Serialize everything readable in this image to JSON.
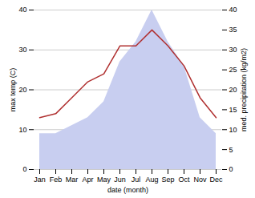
{
  "chart_data": {
    "type": "line",
    "categories": [
      "Jan",
      "Feb",
      "Mar",
      "Apr",
      "May",
      "Jun",
      "Jul",
      "Aug",
      "Sep",
      "Oct",
      "Nov",
      "Dec"
    ],
    "xlabel": "date (month)",
    "ylabel": "max temp (C)",
    "y2label": "med. precipitation (kg/m2)",
    "series": [
      {
        "type": "area",
        "axis": "y2",
        "color": "#c8cef0",
        "values": [
          9,
          9,
          11,
          13,
          17,
          27,
          32,
          40,
          32,
          26,
          13,
          9
        ]
      },
      {
        "type": "line",
        "color": "#b03030",
        "values": [
          13,
          14,
          18,
          22,
          24,
          31,
          31,
          35,
          31,
          26,
          18,
          13
        ]
      }
    ],
    "ylim": [
      0,
      40
    ],
    "yticks": [
      0,
      10,
      20,
      30,
      40
    ],
    "y2lim": [
      0,
      40
    ],
    "y2ticks": [
      0,
      5,
      10,
      15,
      20,
      25,
      30,
      35,
      40
    ],
    "grid": true
  }
}
